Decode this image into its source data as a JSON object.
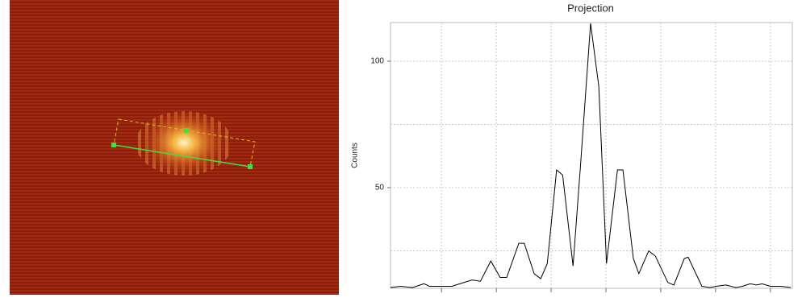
{
  "chart_data": {
    "type": "line",
    "title": "Projection",
    "y_label": "Counts",
    "x": [
      0.07,
      0.26,
      0.47,
      0.68,
      0.78,
      1.04,
      1.19,
      1.41,
      1.56,
      1.71,
      1.9,
      2.07,
      2.19,
      2.41,
      2.51,
      2.69,
      2.81,
      2.93,
      3.1,
      3.21,
      3.4,
      3.54,
      3.72,
      3.87,
      4.01,
      4.21,
      4.31,
      4.5,
      4.6,
      4.78,
      4.9,
      5.13,
      5.24,
      5.43,
      5.5,
      5.75,
      5.9,
      6.01,
      6.19,
      6.37,
      6.49,
      6.63,
      6.75,
      6.85,
      7.0,
      7.19,
      7.37
    ],
    "series": [
      {
        "color": "#000000",
        "values": [
          10.5,
          11,
          10.5,
          12,
          11,
          11,
          11,
          12.5,
          13.5,
          13,
          21,
          14.5,
          14.5,
          28,
          28,
          16,
          14,
          20,
          57,
          55,
          19,
          60,
          115,
          90,
          20,
          57,
          57,
          22,
          16,
          25,
          23,
          12.5,
          11.5,
          22,
          22.5,
          11,
          10.5,
          11,
          11.5,
          10.5,
          11,
          12,
          11.5,
          12,
          11,
          11,
          10.5
        ]
      }
    ],
    "xlim": [
      0.07,
      7.4
    ],
    "ylim": [
      10.2,
      115.3
    ],
    "yticks": [
      50,
      100
    ],
    "yminor": [
      25,
      75
    ],
    "xgrid": [
      1,
      2,
      3,
      4,
      5,
      6,
      7
    ],
    "grid": true
  }
}
